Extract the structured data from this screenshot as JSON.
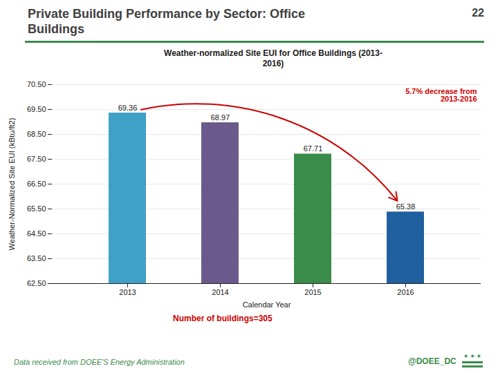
{
  "chart_data": {
    "type": "bar",
    "page_title": "Private Building Performance by Sector: Office\nBuildings",
    "page_number": "22",
    "title": "Weather-normalized Site EUI for Office Buildings (2013-\n2016)",
    "categories": [
      "2013",
      "2014",
      "2015",
      "2016"
    ],
    "values": [
      69.36,
      68.97,
      67.71,
      65.38
    ],
    "colors": [
      "#3FA0C8",
      "#6A5A8C",
      "#3A8C4A",
      "#2060A0"
    ],
    "xlabel": "Calendar Year",
    "ylabel": "Weather-Normalized Site EUI (kBtu/ft2)",
    "ylim": [
      62.5,
      70.5
    ],
    "yticks": [
      {
        "value": 62.5,
        "label": "62.50"
      },
      {
        "value": 63.5,
        "label": "63.50"
      },
      {
        "value": 64.5,
        "label": "64.50"
      },
      {
        "value": 65.5,
        "label": "65.50"
      },
      {
        "value": 66.5,
        "label": "66.50"
      },
      {
        "value": 67.5,
        "label": "67.50"
      },
      {
        "value": 68.5,
        "label": "68.50"
      },
      {
        "value": 69.5,
        "label": "69.50"
      },
      {
        "value": 70.5,
        "label": "70.50"
      }
    ],
    "grid": true,
    "data_labels": true,
    "annotation": "5.7% decrease from\n2013-2016",
    "note": "Number of buildings=305",
    "footer_left": "Data received from DOEE'S Energy Administration",
    "footer_right": "@DOEE_DC",
    "footer_symbol": "★ ★ ★"
  }
}
